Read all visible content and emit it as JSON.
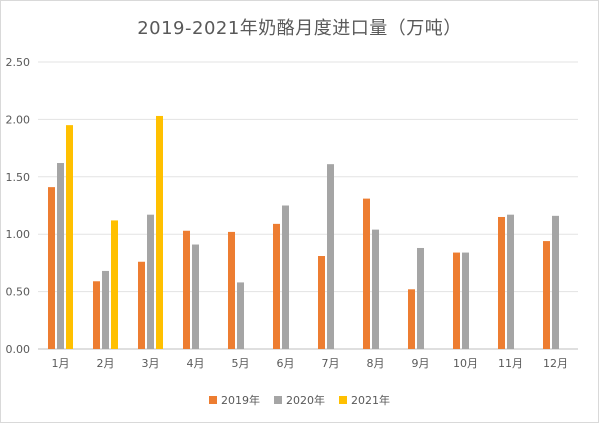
{
  "chart_data": {
    "type": "bar",
    "title": "2019-2021年奶酪月度进口量（万吨）",
    "xlabel": "",
    "ylabel": "",
    "ylim": [
      0,
      2.5
    ],
    "yticks": [
      "0.00",
      "0.50",
      "1.00",
      "1.50",
      "2.00",
      "2.50"
    ],
    "grid": true,
    "legend_position": "bottom",
    "categories": [
      "1月",
      "2月",
      "3月",
      "4月",
      "5月",
      "6月",
      "7月",
      "8月",
      "9月",
      "10月",
      "11月",
      "12月"
    ],
    "series": [
      {
        "name": "2019年",
        "color": "#ed7d31",
        "values": [
          1.41,
          0.59,
          0.76,
          1.03,
          1.02,
          1.09,
          0.81,
          1.31,
          0.52,
          0.84,
          1.15,
          0.94
        ]
      },
      {
        "name": "2020年",
        "color": "#a5a5a5",
        "values": [
          1.62,
          0.68,
          1.17,
          0.91,
          0.58,
          1.25,
          1.61,
          1.04,
          0.88,
          0.84,
          1.17,
          1.16
        ]
      },
      {
        "name": "2021年",
        "color": "#ffc000",
        "values": [
          1.95,
          1.12,
          2.03,
          null,
          null,
          null,
          null,
          null,
          null,
          null,
          null,
          null
        ]
      }
    ]
  }
}
